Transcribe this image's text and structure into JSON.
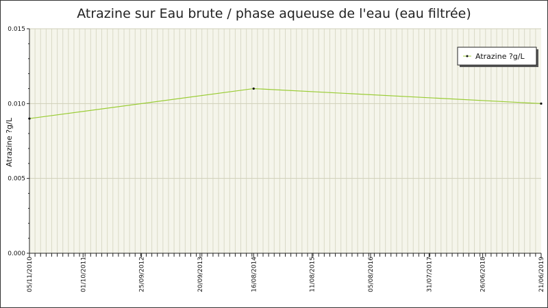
{
  "chart_data": {
    "type": "line",
    "title": "Atrazine sur Eau brute / phase aqueuse de l'eau (eau filtrée)",
    "ylabel": "Atrazine ?g/L",
    "xlabel": "",
    "ylim": [
      0,
      0.015
    ],
    "y_ticks": [
      "0.000",
      "0.005",
      "0.010",
      "0.015"
    ],
    "x_ticks": [
      "05/11/2010",
      "01/10/2011",
      "25/09/2012",
      "20/09/2013",
      "16/08/2014",
      "11/08/2015",
      "05/08/2016",
      "31/07/2017",
      "26/06/2018",
      "21/06/2019"
    ],
    "series": [
      {
        "name": "Atrazine ?g/L",
        "color": "#99cc33",
        "points": [
          {
            "x": "05/11/2010",
            "y": 0.009
          },
          {
            "x": "16/08/2014",
            "y": 0.011
          },
          {
            "x": "21/06/2019",
            "y": 0.01
          }
        ]
      }
    ],
    "grid": true,
    "legend_position": "top-right",
    "colors": {
      "plot_background": "#f5f5eb",
      "grid": "#d9d9c6",
      "line": "#99cc33"
    }
  }
}
